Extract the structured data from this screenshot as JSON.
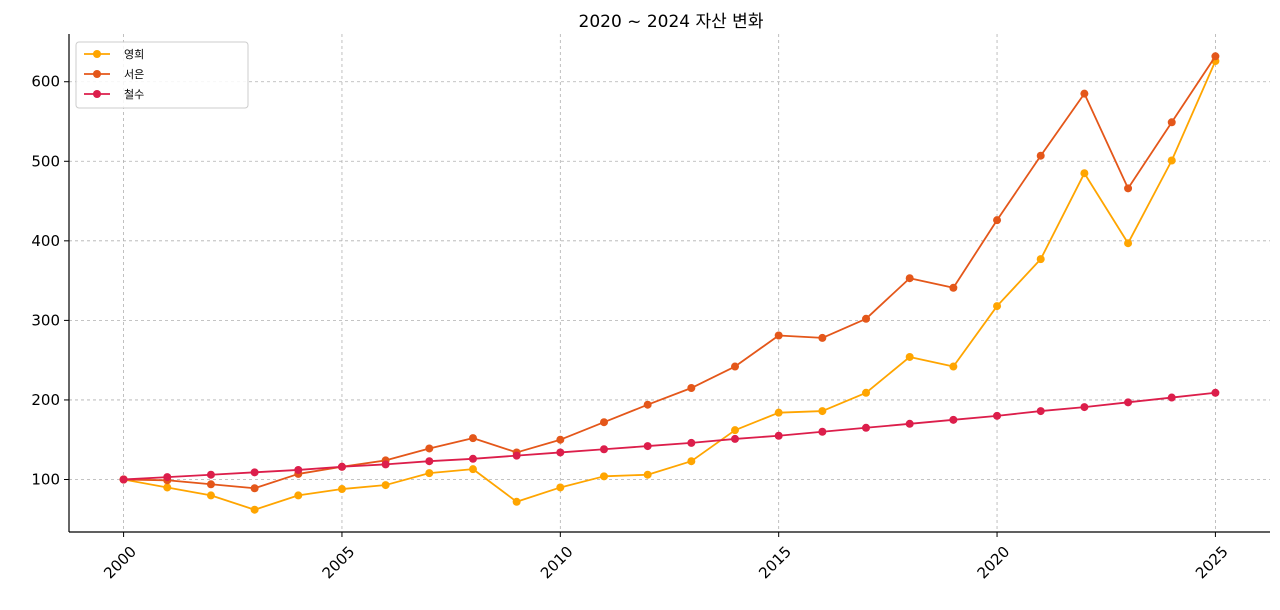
{
  "chart_data": {
    "type": "line",
    "title": "2020 ~ 2024 자산 변화",
    "xlabel": "",
    "ylabel": "",
    "x": [
      2000,
      2001,
      2002,
      2003,
      2004,
      2005,
      2006,
      2007,
      2008,
      2009,
      2010,
      2011,
      2012,
      2013,
      2014,
      2015,
      2016,
      2017,
      2018,
      2019,
      2020,
      2021,
      2022,
      2023,
      2024,
      2025
    ],
    "xlim": [
      1998.75,
      2026.25
    ],
    "ylim": [
      34,
      660
    ],
    "x_ticks": [
      2000,
      2005,
      2010,
      2015,
      2020,
      2025
    ],
    "y_ticks": [
      100,
      200,
      300,
      400,
      500,
      600
    ],
    "grid": true,
    "legend_position": "top-left",
    "series": [
      {
        "name": "영희",
        "color": "#FFA500",
        "values": [
          100,
          90,
          80,
          62,
          80,
          88,
          93,
          108,
          113,
          72,
          90,
          104,
          106,
          123,
          162,
          184,
          186,
          209,
          254,
          242,
          318,
          377,
          485,
          397,
          501,
          626
        ]
      },
      {
        "name": "서은",
        "color": "#E4571A",
        "values": [
          100,
          99,
          94,
          89,
          107,
          116,
          124,
          139,
          152,
          134,
          150,
          172,
          194,
          215,
          242,
          281,
          278,
          302,
          353,
          341,
          426,
          507,
          585,
          466,
          549,
          632
        ]
      },
      {
        "name": "철수",
        "color": "#DC1E4B",
        "values": [
          100,
          103,
          106,
          109,
          112,
          116,
          119,
          123,
          126,
          130,
          134,
          138,
          142,
          146,
          151,
          155,
          160,
          165,
          170,
          175,
          180,
          186,
          191,
          197,
          203,
          209
        ]
      }
    ]
  }
}
